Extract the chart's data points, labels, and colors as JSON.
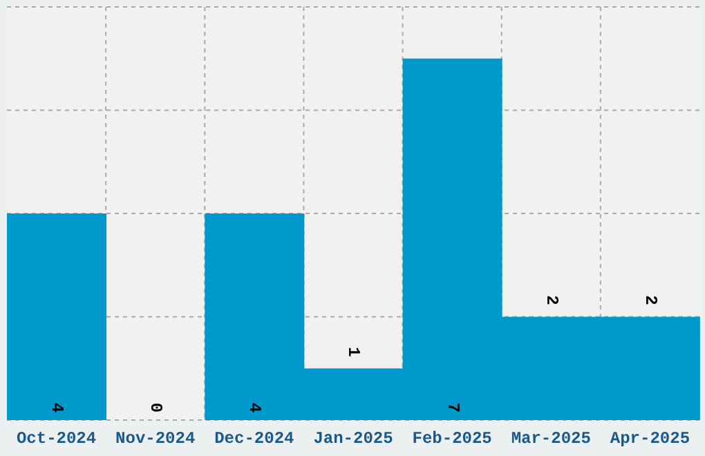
{
  "chart_data": {
    "type": "bar",
    "categories": [
      "Oct-2024",
      "Nov-2024",
      "Dec-2024",
      "Jan-2025",
      "Feb-2025",
      "Mar-2025",
      "Apr-2025"
    ],
    "values": [
      4,
      0,
      4,
      1,
      7,
      2,
      2
    ],
    "color": "#0099cc",
    "tick_labels": "x",
    "grid": true,
    "data_labels": true,
    "legend": false
  }
}
